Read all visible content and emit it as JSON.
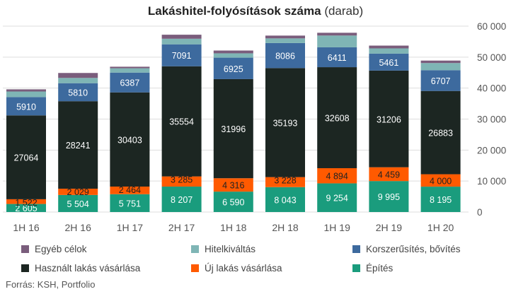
{
  "chart_data": {
    "type": "bar",
    "stacked": true,
    "title_bold": "Lakáshitel-folyósítások száma",
    "title_normal": "(darab)",
    "categories": [
      "1H 16",
      "2H 16",
      "1H 17",
      "2H 17",
      "1H 18",
      "2H 18",
      "1H 19",
      "2H 19",
      "1H 20"
    ],
    "series": [
      {
        "name": "Építés",
        "color": "#1a9c7d",
        "label_color": "#ffffff",
        "values": [
          2605,
          5504,
          5751,
          8207,
          6590,
          8043,
          9254,
          9995,
          8195
        ],
        "labels": [
          "2 605",
          "5 504",
          "5 751",
          "8 207",
          "6 590",
          "8 043",
          "9 254",
          "9 995",
          "8 195"
        ]
      },
      {
        "name": "Új lakás vásárlása",
        "color": "#ff5a00",
        "label_color": "#222222",
        "values": [
          1522,
          2029,
          2464,
          3285,
          4316,
          3228,
          4894,
          4459,
          4000
        ],
        "labels": [
          "1 522",
          "2 029",
          "2 464",
          "3 285",
          "4 316",
          "3 228",
          "4 894",
          "4 459",
          "4 000"
        ]
      },
      {
        "name": "Használt lakás vásárlása",
        "color": "#1c2622",
        "label_color": "#ffffff",
        "values": [
          27064,
          28241,
          30403,
          35554,
          31996,
          35193,
          32608,
          31206,
          26883
        ],
        "labels": [
          "27064",
          "28241",
          "30403",
          "35554",
          "31996",
          "35193",
          "32608",
          "31206",
          "26883"
        ]
      },
      {
        "name": "Korszerűsítés, bővítés",
        "color": "#3d6a9e",
        "label_color": "#ffffff",
        "values": [
          5910,
          5810,
          6387,
          7091,
          6925,
          8086,
          6411,
          5461,
          6707
        ],
        "labels": [
          "5910",
          "5810",
          "6387",
          "7091",
          "6925",
          "8086",
          "6411",
          "5461",
          "6707"
        ]
      },
      {
        "name": "Hitelkiváltás",
        "color": "#7fb5b5",
        "values": [
          1800,
          1700,
          1400,
          1800,
          1400,
          1500,
          3800,
          1700,
          2300
        ]
      },
      {
        "name": "Egyéb célok",
        "color": "#7a5d7c",
        "values": [
          700,
          1600,
          500,
          1300,
          900,
          900,
          900,
          900,
          800
        ]
      }
    ],
    "y_ticks": [
      "0",
      "10 000",
      "20 000",
      "30 000",
      "40 000",
      "50 000",
      "60 000"
    ],
    "ylim": [
      0,
      60000
    ],
    "grid": true,
    "legend_position": "bottom",
    "legend_order": [
      "Egyéb célok",
      "Hitelkiváltás",
      "Korszerűsítés, bővítés",
      "Használt lakás vásárlása",
      "Új lakás vásárlása",
      "Építés"
    ]
  },
  "source": "Forrás: KSH, Portfolio"
}
